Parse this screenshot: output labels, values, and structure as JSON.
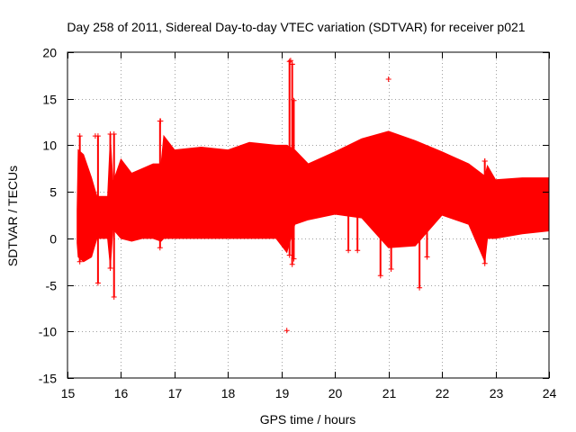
{
  "chart_data": {
    "type": "scatter",
    "title": "Day 258 of 2011, Sidereal Day-to-day VTEC variation (SDTVAR) for receiver p021",
    "xlabel": "GPS time / hours",
    "ylabel": "SDTVAR / TECUs",
    "xlim": [
      15,
      24
    ],
    "ylim": [
      -15,
      20
    ],
    "grid": true,
    "x_ticks": [
      15,
      16,
      17,
      18,
      19,
      20,
      21,
      22,
      23,
      24
    ],
    "y_ticks": [
      -15,
      -10,
      -5,
      0,
      5,
      10,
      15,
      20
    ],
    "x_tick_labels": [
      "15",
      "16",
      "17",
      "18",
      "19",
      "20",
      "21",
      "22",
      "23",
      "24"
    ],
    "y_tick_labels": [
      "-15",
      "-10",
      "-5",
      "0",
      "5",
      "10",
      "15",
      "20"
    ],
    "series": [
      {
        "name": "p021 SDTVAR",
        "marker": "plus",
        "color": "#ff0000",
        "envelope": {
          "x": [
            15.18,
            15.2,
            15.3,
            15.45,
            15.55,
            15.75,
            15.8,
            15.85,
            16.0,
            16.2,
            16.4,
            16.6,
            16.75,
            16.8,
            17.0,
            17.5,
            18.0,
            18.4,
            18.9,
            19.1,
            19.25,
            19.5,
            20.0,
            20.5,
            21.0,
            21.5,
            22.0,
            22.5,
            22.8,
            22.85,
            23.0,
            23.5,
            24.0
          ],
          "upper": [
            3.0,
            9.5,
            9.0,
            6.5,
            4.5,
            4.5,
            10.8,
            6.0,
            8.5,
            7.0,
            7.5,
            8.0,
            8.0,
            11.0,
            9.5,
            9.8,
            9.5,
            10.3,
            10.0,
            10.0,
            9.5,
            8.0,
            9.3,
            10.7,
            11.5,
            10.5,
            9.3,
            8.0,
            6.7,
            7.8,
            6.3,
            6.5,
            6.5
          ],
          "lower": [
            -0.5,
            -2.0,
            -2.5,
            -2.0,
            0.0,
            0.0,
            -3.0,
            1.0,
            0.0,
            -0.3,
            0.0,
            0.0,
            -0.3,
            0.0,
            0.0,
            0.0,
            0.0,
            0.0,
            0.0,
            -1.5,
            1.5,
            2.0,
            2.6,
            2.2,
            -1.0,
            -0.8,
            2.5,
            1.5,
            -2.5,
            0.0,
            0.0,
            0.5,
            0.8
          ]
        },
        "spikes": [
          {
            "x": 15.23,
            "ymin": -2.5,
            "ymax": 11.0
          },
          {
            "x": 15.57,
            "ymin": -4.8,
            "ymax": 11.0
          },
          {
            "x": 15.8,
            "ymin": -3.2,
            "ymax": 11.2
          },
          {
            "x": 15.87,
            "ymin": -6.3,
            "ymax": 11.2
          },
          {
            "x": 16.73,
            "ymin": -1.0,
            "ymax": 12.6
          },
          {
            "x": 19.15,
            "ymin": -1.8,
            "ymax": 19.0
          },
          {
            "x": 19.2,
            "ymin": -2.8,
            "ymax": 18.7
          },
          {
            "x": 19.23,
            "ymin": -2.2,
            "ymax": 14.8
          },
          {
            "x": 20.25,
            "ymin": -1.3,
            "ymax": 2.5
          },
          {
            "x": 20.42,
            "ymin": -1.3,
            "ymax": 3.0
          },
          {
            "x": 20.85,
            "ymin": -4.0,
            "ymax": 5.0
          },
          {
            "x": 21.05,
            "ymin": -3.3,
            "ymax": 4.0
          },
          {
            "x": 21.58,
            "ymin": -5.3,
            "ymax": 1.5
          },
          {
            "x": 21.72,
            "ymin": -2.0,
            "ymax": 4.0
          },
          {
            "x": 22.8,
            "ymin": -2.7,
            "ymax": 8.3
          }
        ],
        "outliers": [
          {
            "x": 15.52,
            "y": 11.0
          },
          {
            "x": 16.74,
            "y": 12.6
          },
          {
            "x": 19.1,
            "y": -9.9
          },
          {
            "x": 19.17,
            "y": 19.1
          },
          {
            "x": 19.2,
            "y": 18.7
          },
          {
            "x": 21.0,
            "y": 17.1
          },
          {
            "x": 22.8,
            "y": 8.3
          }
        ]
      }
    ]
  }
}
